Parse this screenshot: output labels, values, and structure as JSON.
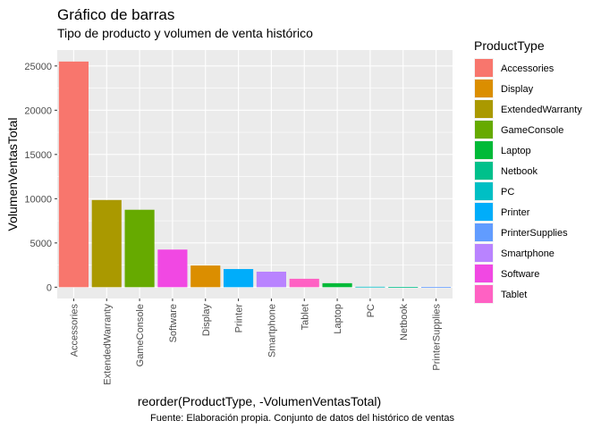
{
  "chart_data": {
    "type": "bar",
    "title": "Gráfico de barras",
    "subtitle": "Tipo de producto y volumen de venta histórico",
    "xlabel": "reorder(ProductType, -VolumenVentasTotal)",
    "ylabel": "VolumenVentasTotal",
    "caption": "Fuente: Elaboración propia. Conjunto de datos del histórico de ventas",
    "ylim": [
      -1280,
      26800
    ],
    "yticks": [
      0,
      5000,
      10000,
      15000,
      20000,
      25000
    ],
    "ytick_labels": [
      "0",
      "5000",
      "10000",
      "15000",
      "20000",
      "25000"
    ],
    "grid": true,
    "categories": [
      "Accessories",
      "ExtendedWarranty",
      "GameConsole",
      "Software",
      "Display",
      "Printer",
      "Smartphone",
      "Tablet",
      "Laptop",
      "PC",
      "Netbook",
      "PrinterSupplies"
    ],
    "values": [
      25500,
      9850,
      8750,
      4250,
      2450,
      2050,
      1750,
      950,
      450,
      50,
      30,
      20
    ],
    "bar_colors": [
      "#F8766D",
      "#AA9900",
      "#66AA00",
      "#F148E3",
      "#DB8E00",
      "#00ADFA",
      "#B983FF",
      "#FF61C3",
      "#00BA38",
      "#00BFC4",
      "#00C08B",
      "#619CFF"
    ],
    "legend": {
      "title": "ProductType",
      "position": "right",
      "entries": [
        {
          "label": "Accessories",
          "color": "#F8766D"
        },
        {
          "label": "Display",
          "color": "#DB8E00"
        },
        {
          "label": "ExtendedWarranty",
          "color": "#AA9900"
        },
        {
          "label": "GameConsole",
          "color": "#66AA00"
        },
        {
          "label": "Laptop",
          "color": "#00BA38"
        },
        {
          "label": "Netbook",
          "color": "#00C08B"
        },
        {
          "label": "PC",
          "color": "#00BFC4"
        },
        {
          "label": "Printer",
          "color": "#00ADFA"
        },
        {
          "label": "PrinterSupplies",
          "color": "#619CFF"
        },
        {
          "label": "Smartphone",
          "color": "#B983FF"
        },
        {
          "label": "Software",
          "color": "#F148E3"
        },
        {
          "label": "Tablet",
          "color": "#FF61C3"
        }
      ]
    }
  }
}
